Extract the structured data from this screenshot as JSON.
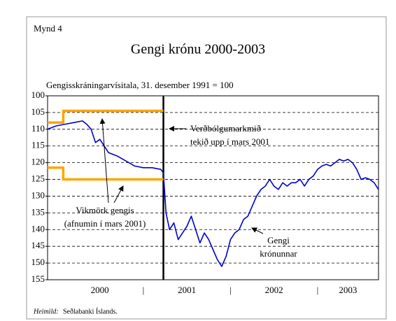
{
  "chart_data": {
    "type": "line",
    "figure_label": "Mynd 4",
    "title": "Gengi krónu 2000-2003",
    "subtitle": "Gengisskráningarvísitala, 31. desember 1991 = 100",
    "ylim": [
      100,
      155
    ],
    "yticks": [
      100,
      105,
      110,
      115,
      120,
      125,
      130,
      135,
      140,
      145,
      150,
      155
    ],
    "y_inverted": true,
    "grid": true,
    "xlim": [
      1999.9,
      2003.7
    ],
    "xticks": [
      {
        "value": 2000.5,
        "label": "2000"
      },
      {
        "value": 2001.5,
        "label": "2001"
      },
      {
        "value": 2002.5,
        "label": "2002"
      },
      {
        "value": 2003.35,
        "label": "2003"
      }
    ],
    "year_separators": [
      {
        "value": 2001,
        "label": "|"
      },
      {
        "value": 2002,
        "label": "|"
      },
      {
        "value": 2003,
        "label": "|"
      }
    ],
    "event_line": 2001.23,
    "series": [
      {
        "color": "#0000cc",
        "x": [
          1999.9,
          1999.95,
          2000.0,
          2000.1,
          2000.2,
          2000.3,
          2000.35,
          2000.4,
          2000.45,
          2000.5,
          2000.55,
          2000.6,
          2000.7,
          2000.8,
          2000.9,
          2001.0,
          2001.1,
          2001.2,
          2001.23,
          2001.26,
          2001.3,
          2001.35,
          2001.4,
          2001.45,
          2001.5,
          2001.55,
          2001.6,
          2001.65,
          2001.7,
          2001.75,
          2001.8,
          2001.85,
          2001.9,
          2001.95,
          2002.0,
          2002.05,
          2002.1,
          2002.15,
          2002.2,
          2002.25,
          2002.3,
          2002.35,
          2002.4,
          2002.45,
          2002.5,
          2002.55,
          2002.6,
          2002.65,
          2002.7,
          2002.75,
          2002.8,
          2002.85,
          2002.9,
          2002.95,
          2003.0,
          2003.05,
          2003.1,
          2003.15,
          2003.2,
          2003.25,
          2003.3,
          2003.35,
          2003.4,
          2003.45,
          2003.5,
          2003.55,
          2003.6,
          2003.65,
          2003.7
        ],
        "values": [
          110,
          109.5,
          109,
          108.5,
          108,
          107.5,
          108.5,
          110,
          114,
          113,
          115,
          117,
          118,
          119.5,
          121,
          121.5,
          121.5,
          122,
          123,
          135,
          140,
          138,
          143,
          141,
          139,
          136,
          140,
          144,
          141,
          143,
          146,
          149,
          151,
          148,
          143,
          141,
          140,
          137,
          136,
          133,
          130,
          128,
          127,
          125,
          127,
          128,
          126,
          127,
          126,
          126,
          125,
          127,
          125,
          124,
          122,
          121,
          120.5,
          121,
          120,
          119,
          119.5,
          119,
          120,
          122,
          125,
          124.5,
          125,
          126,
          128
        ]
      },
      {
        "color": "#ffa500",
        "x": [
          1999.9,
          2000.08,
          2000.08,
          2001.23
        ],
        "values": [
          108,
          108,
          104.5,
          104.5
        ]
      },
      {
        "color": "#ffa500",
        "x": [
          1999.9,
          2000.08,
          2000.08,
          2001.23
        ],
        "values": [
          121.5,
          121.5,
          125,
          125
        ]
      }
    ],
    "annotations": [
      {
        "lines": [
          "Verðbólgumarkmið",
          "tekið upp í mars 2001"
        ]
      },
      {
        "lines": [
          "Vikmörk gengis",
          "(afnumin í mars 2001)"
        ]
      },
      {
        "lines": [
          "Gengi",
          "krónunnar"
        ]
      }
    ],
    "source_label": "Heimild:",
    "source": "Seðlabanki Íslands."
  }
}
